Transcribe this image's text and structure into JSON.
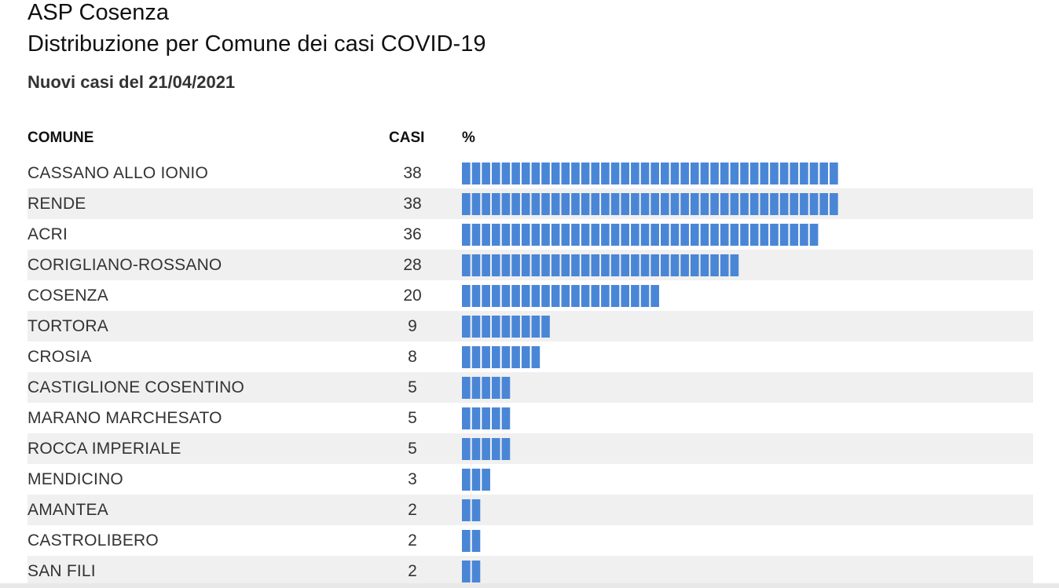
{
  "header": {
    "title_line1": "ASP Cosenza",
    "title_line2": "Distribuzione per Comune dei casi COVID-19",
    "subtitle": "Nuovi casi del 21/04/2021"
  },
  "table_header": {
    "comune": "COMUNE",
    "casi": "CASI",
    "pct": "%"
  },
  "colors": {
    "bar": "#4a86d6",
    "row_alt": "#f0f0f0"
  },
  "chart_data": {
    "type": "bar",
    "orientation": "horizontal",
    "title": "ASP Cosenza Distribuzione per Comune dei casi COVID-19",
    "subtitle": "Nuovi casi del 21/04/2021",
    "categories": [
      "CASSANO ALLO IONIO",
      "RENDE",
      "ACRI",
      "CORIGLIANO-ROSSANO",
      "COSENZA",
      "TORTORA",
      "CROSIA",
      "CASTIGLIONE COSENTINO",
      "MARANO MARCHESATO",
      "ROCCA IMPERIALE",
      "MENDICINO",
      "AMANTEA",
      "CASTROLIBERO",
      "SAN FILI"
    ],
    "values": [
      38,
      38,
      36,
      28,
      20,
      9,
      8,
      5,
      5,
      5,
      3,
      2,
      2,
      2
    ],
    "xlabel": "%",
    "ylabel": "COMUNE",
    "grid": false,
    "legend": "none"
  }
}
